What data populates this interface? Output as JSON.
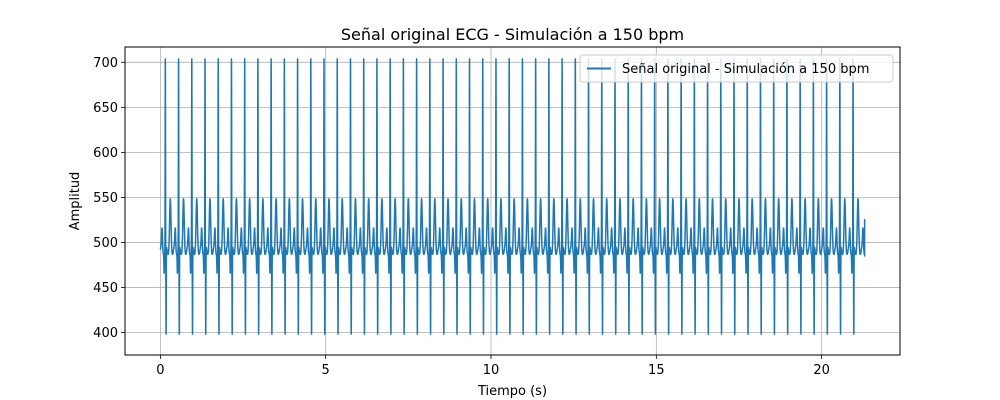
{
  "chart_data": {
    "type": "line",
    "title": "Señal original ECG - Simulación a 150 bpm",
    "xlabel": "Tiempo (s)",
    "ylabel": "Amplitud",
    "xlim": [
      -1.07,
      22.37
    ],
    "ylim": [
      375,
      717
    ],
    "xticks": [
      0,
      5,
      10,
      15,
      20
    ],
    "yticks": [
      400,
      450,
      500,
      550,
      600,
      650,
      700
    ],
    "grid": true,
    "legend_position": "top-right",
    "series": [
      {
        "name": "Señal original - Simulación a 150 bpm",
        "color": "#1f77b4",
        "duration_s": 21.3,
        "heart_rate_bpm": 150,
        "beat_interval_s": 0.4,
        "baseline": 492,
        "r_peak": 700,
        "s_trough": 393,
        "t_wave_peak": 543,
        "p_wave_peak": 512,
        "trough_min": 470,
        "end_value": 526
      }
    ]
  }
}
